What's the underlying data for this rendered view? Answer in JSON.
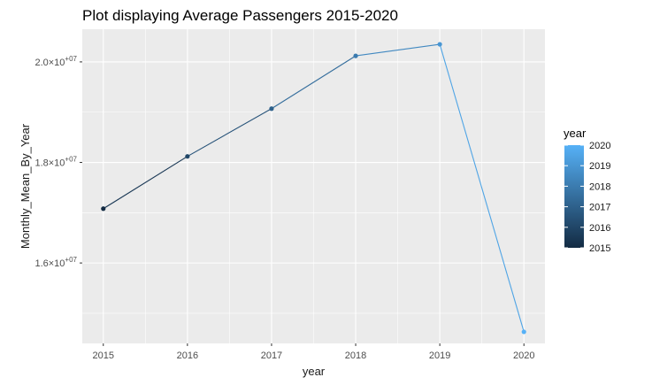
{
  "chart_data": {
    "type": "line",
    "title": "Plot displaying Average Passengers 2015-2020",
    "xlabel": "year",
    "ylabel": "Monthly_Mean_By_Year",
    "x": [
      2015,
      2016,
      2017,
      2018,
      2019,
      2020
    ],
    "series": [
      {
        "values": [
          17080000,
          18120000,
          19070000,
          20120000,
          20350000,
          14630000
        ]
      }
    ],
    "xlim": [
      2014.75,
      2020.25
    ],
    "ylim": [
      14400000,
      20650000
    ],
    "x_ticks": [
      2015,
      2016,
      2017,
      2018,
      2019,
      2020
    ],
    "x_tick_labels": [
      "2015",
      "2016",
      "2017",
      "2018",
      "2019",
      "2020"
    ],
    "y_ticks": [
      {
        "value": 16000000,
        "mantissa": "1.6",
        "exponent": "+07"
      },
      {
        "value": 18000000,
        "mantissa": "1.8",
        "exponent": "+07"
      },
      {
        "value": 20000000,
        "mantissa": "2.0",
        "exponent": "+07"
      }
    ],
    "y_tick_times": "×10",
    "grid": true,
    "background": "#ebebeb",
    "gridline_color": "#ffffff",
    "legend": {
      "title": "year",
      "position": "right",
      "labels": [
        "2020",
        "2019",
        "2018",
        "2017",
        "2016",
        "2015"
      ],
      "range": [
        2015,
        2020
      ],
      "color_low": "#132b43",
      "color_high": "#56b1f7"
    }
  }
}
